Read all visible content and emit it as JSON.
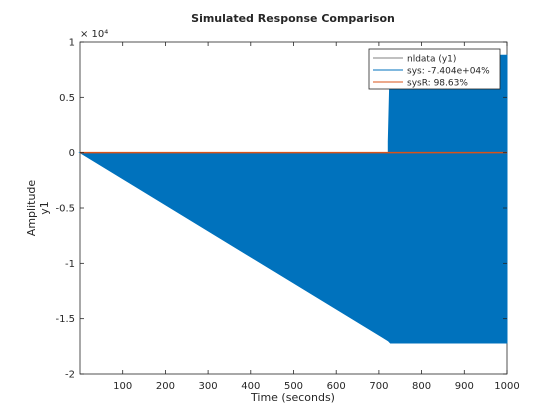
{
  "chart_data": {
    "type": "line",
    "title": "Simulated Response Comparison",
    "xlabel": "Time (seconds)",
    "ylabel": "Amplitude",
    "ylabel2": "y1",
    "y_exponent_label": "× 10⁴",
    "xlim": [
      0,
      1000
    ],
    "ylim": [
      -2,
      1
    ],
    "xticks": [
      100,
      200,
      300,
      400,
      500,
      600,
      700,
      800,
      900,
      1000
    ],
    "yticks": [
      1,
      0.5,
      0,
      -0.5,
      -1,
      -1.5,
      -2
    ],
    "ytick_labels": [
      "1",
      "0.5",
      "0",
      "-0.5",
      "-1",
      "-1.5",
      "-2"
    ],
    "grid": false,
    "legend_position": "top-right",
    "series": [
      {
        "name": "nldata (y1)",
        "color": "#808080",
        "x": [
          0,
          1000
        ],
        "y": [
          0,
          0
        ]
      },
      {
        "name": "sys: -7.404e+04%",
        "color": "#0072BD",
        "x": [
          0,
          722,
          722,
          727,
          1000
        ],
        "y": [
          0,
          0,
          0.1,
          0.88,
          0.88
        ],
        "envelope_lower": {
          "x": [
            722,
            727,
            1000
          ],
          "y": [
            -1.7,
            -1.72,
            -1.72
          ]
        }
      },
      {
        "name": "sysR: 98.63%",
        "color": "#D95319",
        "x": [
          0,
          1000
        ],
        "y": [
          0,
          0
        ]
      }
    ]
  }
}
